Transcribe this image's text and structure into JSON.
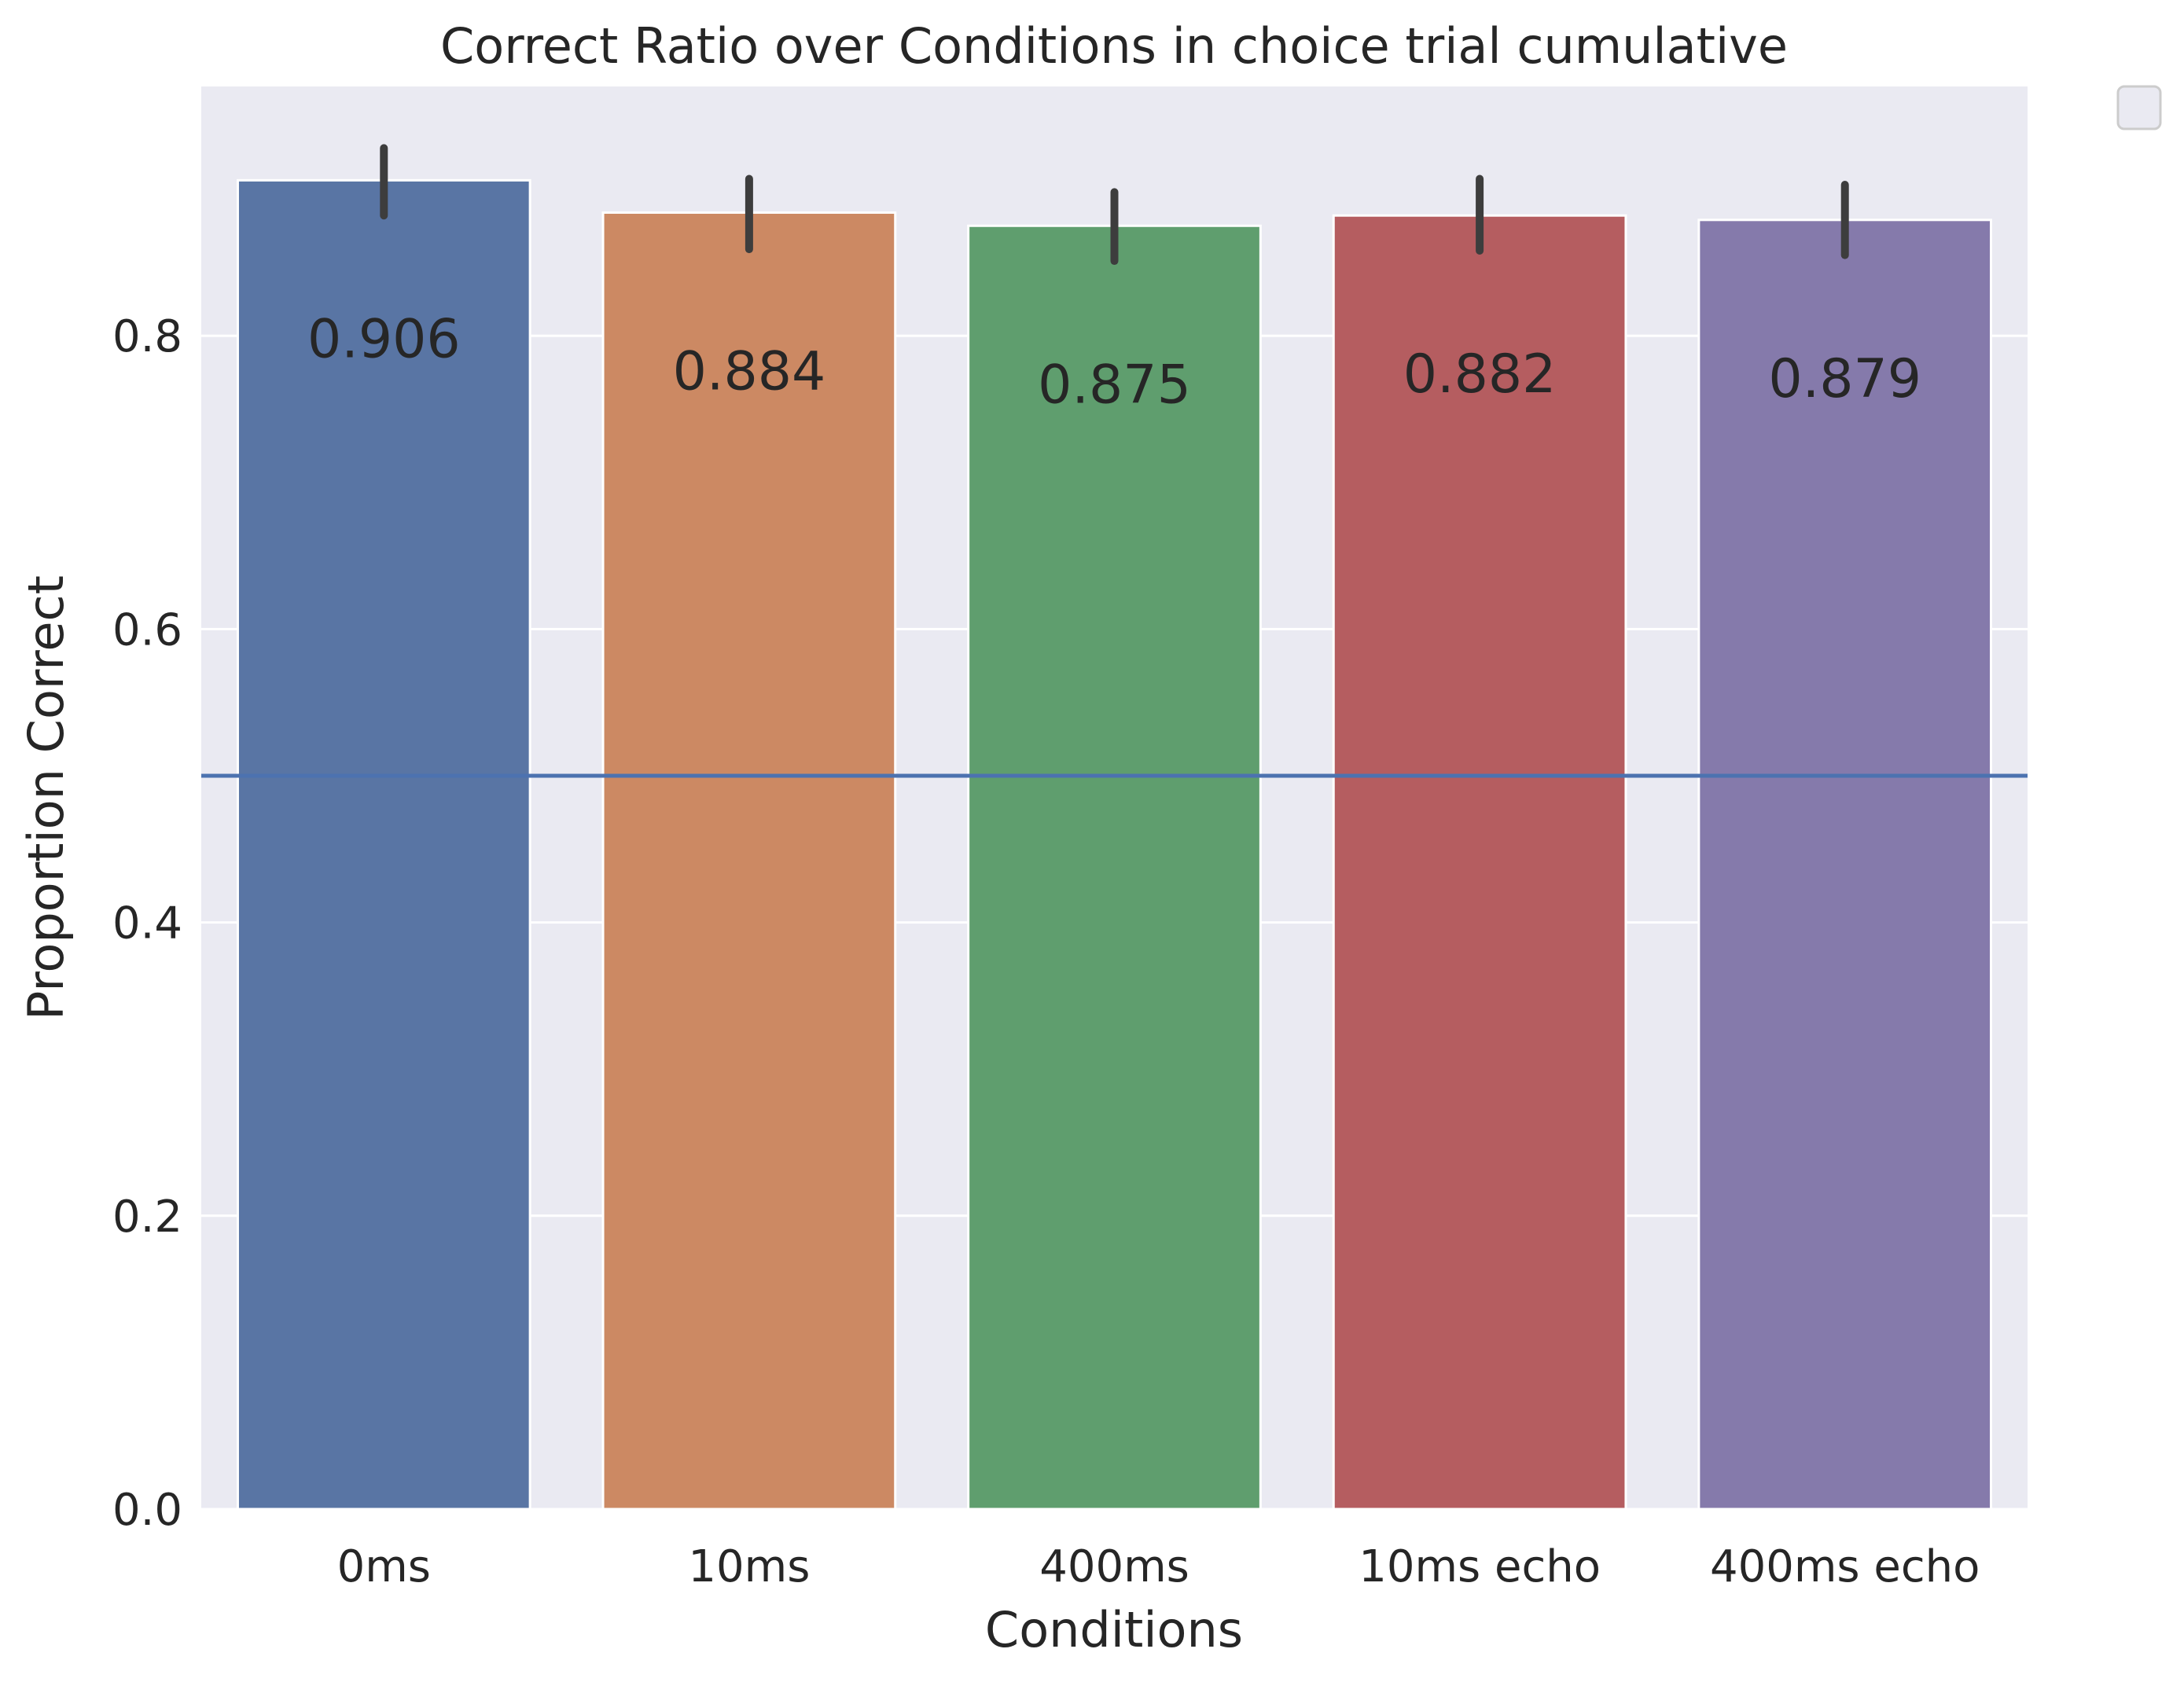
{
  "chart_data": {
    "type": "bar",
    "title": "Correct Ratio over Conditions in choice trial cumulative",
    "xlabel": "Conditions",
    "ylabel": "Proportion Correct",
    "categories": [
      "0ms",
      "10ms",
      "400ms",
      "10ms echo",
      "400ms echo"
    ],
    "values": [
      0.906,
      0.884,
      0.875,
      0.882,
      0.879
    ],
    "value_labels": [
      "0.906",
      "0.884",
      "0.875",
      "0.882",
      "0.879"
    ],
    "error_low": [
      0.882,
      0.859,
      0.851,
      0.858,
      0.855
    ],
    "error_high": [
      0.928,
      0.907,
      0.898,
      0.907,
      0.903
    ],
    "bar_colors": [
      "#5975a4",
      "#cc8963",
      "#5f9e6e",
      "#b55d60",
      "#857aab"
    ],
    "ylim": [
      0,
      0.97
    ],
    "yticks": [
      0.0,
      0.2,
      0.4,
      0.6,
      0.8
    ],
    "ytick_labels": [
      "0.0",
      "0.2",
      "0.4",
      "0.6",
      "0.8"
    ],
    "reference_line": {
      "y": 0.5,
      "color": "#4c72b0"
    },
    "grid": true,
    "plot_background": "#eaeaf2",
    "legend": {
      "placement": "outside top-right",
      "entries": []
    }
  }
}
